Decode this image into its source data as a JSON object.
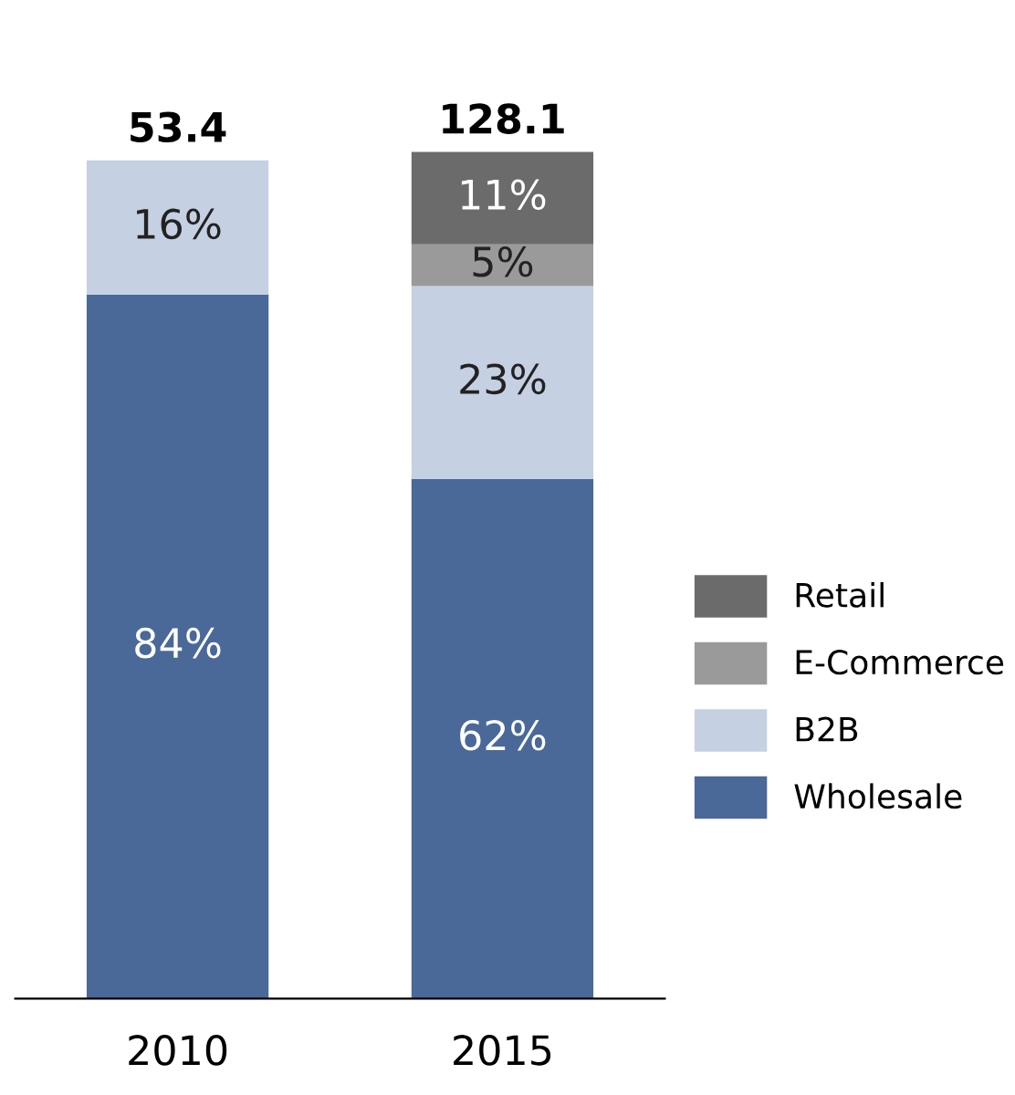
{
  "chart_data": {
    "type": "bar",
    "stacked": true,
    "categories": [
      "2010",
      "2015"
    ],
    "series": [
      {
        "name": "Wholesale",
        "color": "#4a6898",
        "values": [
          84,
          62
        ],
        "value_labels": [
          "84%",
          "62%"
        ]
      },
      {
        "name": "B2B",
        "color": "#c5d0e3",
        "values": [
          16,
          23
        ],
        "value_labels": [
          "16%",
          "23%"
        ]
      },
      {
        "name": "E-Commerce",
        "color": "#9a9a9a",
        "values": [
          null,
          5
        ],
        "value_labels": [
          null,
          "5%"
        ]
      },
      {
        "name": "Retail",
        "color": "#6b6b6b",
        "values": [
          null,
          11
        ],
        "value_labels": [
          null,
          "11%"
        ]
      }
    ],
    "annotations": [
      "53.4",
      "128.1"
    ],
    "legend": "right",
    "grid": false,
    "tick_labels": "x"
  }
}
